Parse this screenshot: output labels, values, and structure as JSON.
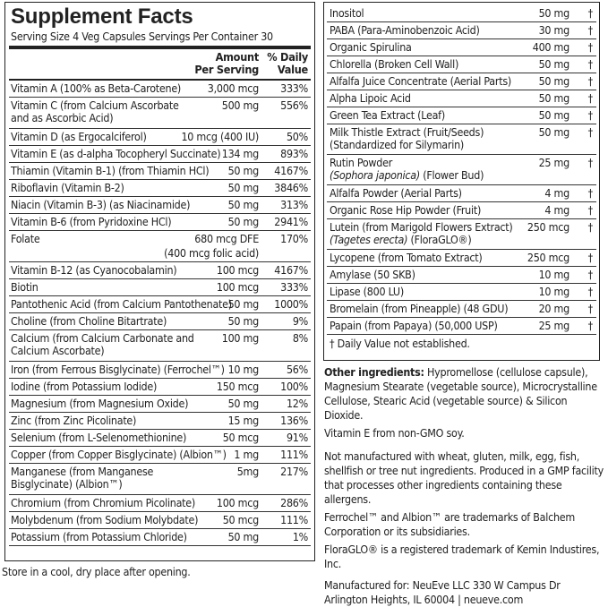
{
  "title": "Supplement Facts",
  "serving": "Serving Size 4 Veg Capsules  Servings Per Container 30",
  "header": {
    "amount_l1": "Amount",
    "amount_l2": "Per Serving",
    "dv_l1": "% Daily",
    "dv_l2": "Value"
  },
  "left_rows": [
    {
      "name": "Vitamin A (100% as Beta-Carotene)",
      "amount": "3,000 mcg",
      "dv": "333%"
    },
    {
      "name": "Vitamin C (from Calcium Ascorbate and as Ascorbic Acid)",
      "amount": "500 mg",
      "dv": "556%"
    },
    {
      "name": "Vitamin D (as Ergocalciferol)",
      "amount": "10 mcg (400 IU)",
      "dv": "50%"
    },
    {
      "name": "Vitamin E (as d-alpha Tocopheryl Succinate)",
      "amount": "134 mg",
      "dv": "893%"
    },
    {
      "name": "Thiamin (Vitamin B-1) (from Thiamin HCl)",
      "amount": "50 mg",
      "dv": "4167%"
    },
    {
      "name": "Riboflavin (Vitamin B-2)",
      "amount": "50 mg",
      "dv": "3846%"
    },
    {
      "name": "Niacin (Vitamin B-3) (as Niacinamide)",
      "amount": "50 mg",
      "dv": "313%"
    },
    {
      "name": "Vitamin B-6 (from Pyridoxine HCl)",
      "amount": "50 mg",
      "dv": "2941%"
    },
    {
      "name": "Folate",
      "amount": "680 mcg DFE",
      "amount2": "(400 mcg folic acid)",
      "dv": "170%"
    },
    {
      "name": "Vitamin B-12 (as Cyanocobalamin)",
      "amount": "100 mcg",
      "dv": "4167%"
    },
    {
      "name": "Biotin",
      "amount": "100 mcg",
      "dv": "333%"
    },
    {
      "name": "Pantothenic Acid (from Calcium Pantothenate)",
      "amount": "50 mg",
      "dv": "1000%"
    },
    {
      "name": "Choline (from Choline Bitartrate)",
      "amount": "50 mg",
      "dv": "9%"
    },
    {
      "name": "Calcium (from Calcium Carbonate and Calcium Ascorbate)",
      "amount": "100 mg",
      "dv": "8%"
    },
    {
      "name": "Iron (from Ferrous Bisglycinate) (Ferrochel™)",
      "amount": "10 mg",
      "dv": "56%"
    },
    {
      "name": "Iodine (from Potassium Iodide)",
      "amount": "150 mcg",
      "dv": "100%"
    },
    {
      "name": "Magnesium (from Magnesium Oxide)",
      "amount": "50 mg",
      "dv": "12%"
    },
    {
      "name": "Zinc (from Zinc Picolinate)",
      "amount": "15 mg",
      "dv": "136%"
    },
    {
      "name": "Selenium (from L-Selenomethionine)",
      "amount": "50 mcg",
      "dv": "91%"
    },
    {
      "name": "Copper (from Copper Bisglycinate) (Albion™)",
      "amount": "1 mg",
      "dv": "111%"
    },
    {
      "name": "Manganese (from Manganese Bisglycinate) (Albion™)",
      "amount": "5mg",
      "dv": "217%"
    },
    {
      "name": "Chromium (from Chromium Picolinate)",
      "amount": "100 mcg",
      "dv": "286%"
    },
    {
      "name": "Molybdenum (from Sodium Molybdate)",
      "amount": "50 mcg",
      "dv": "111%"
    },
    {
      "name": "Potassium (from Potassium Chloride)",
      "amount": "50 mg",
      "dv": "1%"
    }
  ],
  "storage": "Store in a cool, dry place after opening.",
  "right_rows": [
    {
      "name": "Inositol",
      "amount": "50 mg",
      "dv": "†"
    },
    {
      "name": "PABA (Para-Aminobenzoic Acid)",
      "amount": "30 mg",
      "dv": "†"
    },
    {
      "name": "Organic Spirulina",
      "amount": "400 mg",
      "dv": "†"
    },
    {
      "name": "Chlorella (Broken Cell Wall)",
      "amount": "50 mg",
      "dv": "†"
    },
    {
      "name": "Alfalfa Juice Concentrate (Aerial Parts)",
      "amount": "50 mg",
      "dv": "†"
    },
    {
      "name": "Alpha Lipoic Acid",
      "amount": "50 mg",
      "dv": "†"
    },
    {
      "name": "Green Tea Extract (Leaf)",
      "amount": "50 mg",
      "dv": "†"
    },
    {
      "name": "Milk Thistle Extract (Fruit/Seeds)",
      "name2": "(Standardized for Silymarin)",
      "amount": "50 mg",
      "dv": "†"
    },
    {
      "name": "Rutin Powder",
      "name2_italic": "(Sophora japonica)",
      "name2_rest": " (Flower Bud)",
      "amount": "25 mg",
      "dv": "†"
    },
    {
      "name": "Alfalfa Powder (Aerial Parts)",
      "amount": "4 mg",
      "dv": "†"
    },
    {
      "name": "Organic Rose Hip Powder (Fruit)",
      "amount": "4 mg",
      "dv": "†"
    },
    {
      "name": "Lutein (from Marigold Flowers Extract)",
      "name2_italic": "(Tagetes erecta)",
      "name2_rest": " (FloraGLO®)",
      "amount": "250 mcg",
      "dv": "†"
    },
    {
      "name": "Lycopene (from Tomato Extract)",
      "amount": "250 mcg",
      "dv": "†"
    },
    {
      "name": "Amylase (50 SKB)",
      "amount": "10 mg",
      "dv": "†"
    },
    {
      "name": "Lipase (800 LU)",
      "amount": "10 mg",
      "dv": "†"
    },
    {
      "name": "Bromelain (from Pineapple) (48 GDU)",
      "amount": "20 mg",
      "dv": "†"
    },
    {
      "name": "Papain (from Papaya) (50,000 USP)",
      "amount": "25 mg",
      "dv": "†"
    }
  ],
  "dagger_note": "† Daily Value not established.",
  "other_ingredients_label": "Other ingredients:",
  "other_ingredients": " Hypromellose (cellulose capsule), Magnesium Stearate (vegetable source), Microcrystalline Cellulose, Stearic Acid (vegetable source) & Silicon Dioxide.",
  "vitamin_e_note": "Vitamin E from non-GMO soy.",
  "allergen_note": "Not manufactured with wheat, gluten, milk, egg, fish, shellfish or tree nut ingredients. Produced in a GMP facility that processes other ingredients containing these allergens.",
  "trademark_note": "Ferrochel™ and Albion™ are trademarks of Balchem Corporation or its subsidiaries.",
  "floraglo_note": "FloraGLO® is a registered trademark of Kemin Industires, Inc.",
  "manufacturer_l1": "Manufactured for: NeuEve LLC 330 W Campus Dr",
  "manufacturer_l2": "Arlington Heights, IL 60004 | neueve.com"
}
